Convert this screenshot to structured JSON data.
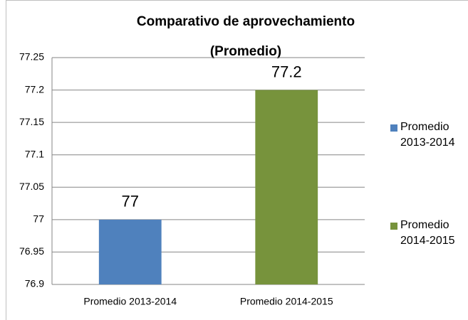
{
  "chart_data": {
    "type": "bar",
    "title": "Comparativo de aprovechamiento",
    "subtitle": "(Promedio)",
    "categories": [
      "Promedio 2013-2014",
      "Promedio 2014-2015"
    ],
    "values": [
      77,
      77.2
    ],
    "colors": [
      "#4f81bd",
      "#77933c"
    ],
    "ylim": [
      76.9,
      77.25
    ],
    "yticks": [
      76.9,
      76.95,
      77,
      77.05,
      77.1,
      77.15,
      77.2,
      77.25
    ],
    "grid": true,
    "legend": "right"
  }
}
